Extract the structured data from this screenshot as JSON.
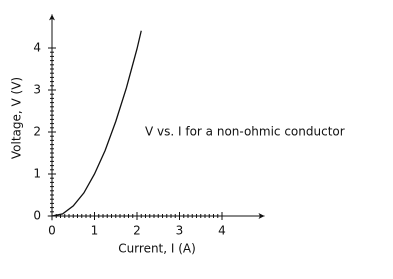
{
  "chart_data": {
    "type": "line",
    "annotation": "V vs. I for a non-ohmic conductor",
    "x_label": "Current, I (A)",
    "y_label": "Voltage, V (V)",
    "x": [
      0,
      0.25,
      0.5,
      0.75,
      1,
      1.25,
      1.5,
      1.75,
      2,
      2.1
    ],
    "series": [
      {
        "color": "#111111",
        "values": [
          0,
          0.05,
          0.24,
          0.55,
          1,
          1.56,
          2.25,
          3.05,
          3.98,
          4.41
        ]
      }
    ],
    "xlim": [
      -0.1,
      5
    ],
    "ylim": [
      -0.1,
      4.8
    ],
    "xticks": [
      0,
      1,
      2,
      3,
      4
    ],
    "yticks": [
      0,
      1,
      2,
      3,
      4
    ]
  }
}
